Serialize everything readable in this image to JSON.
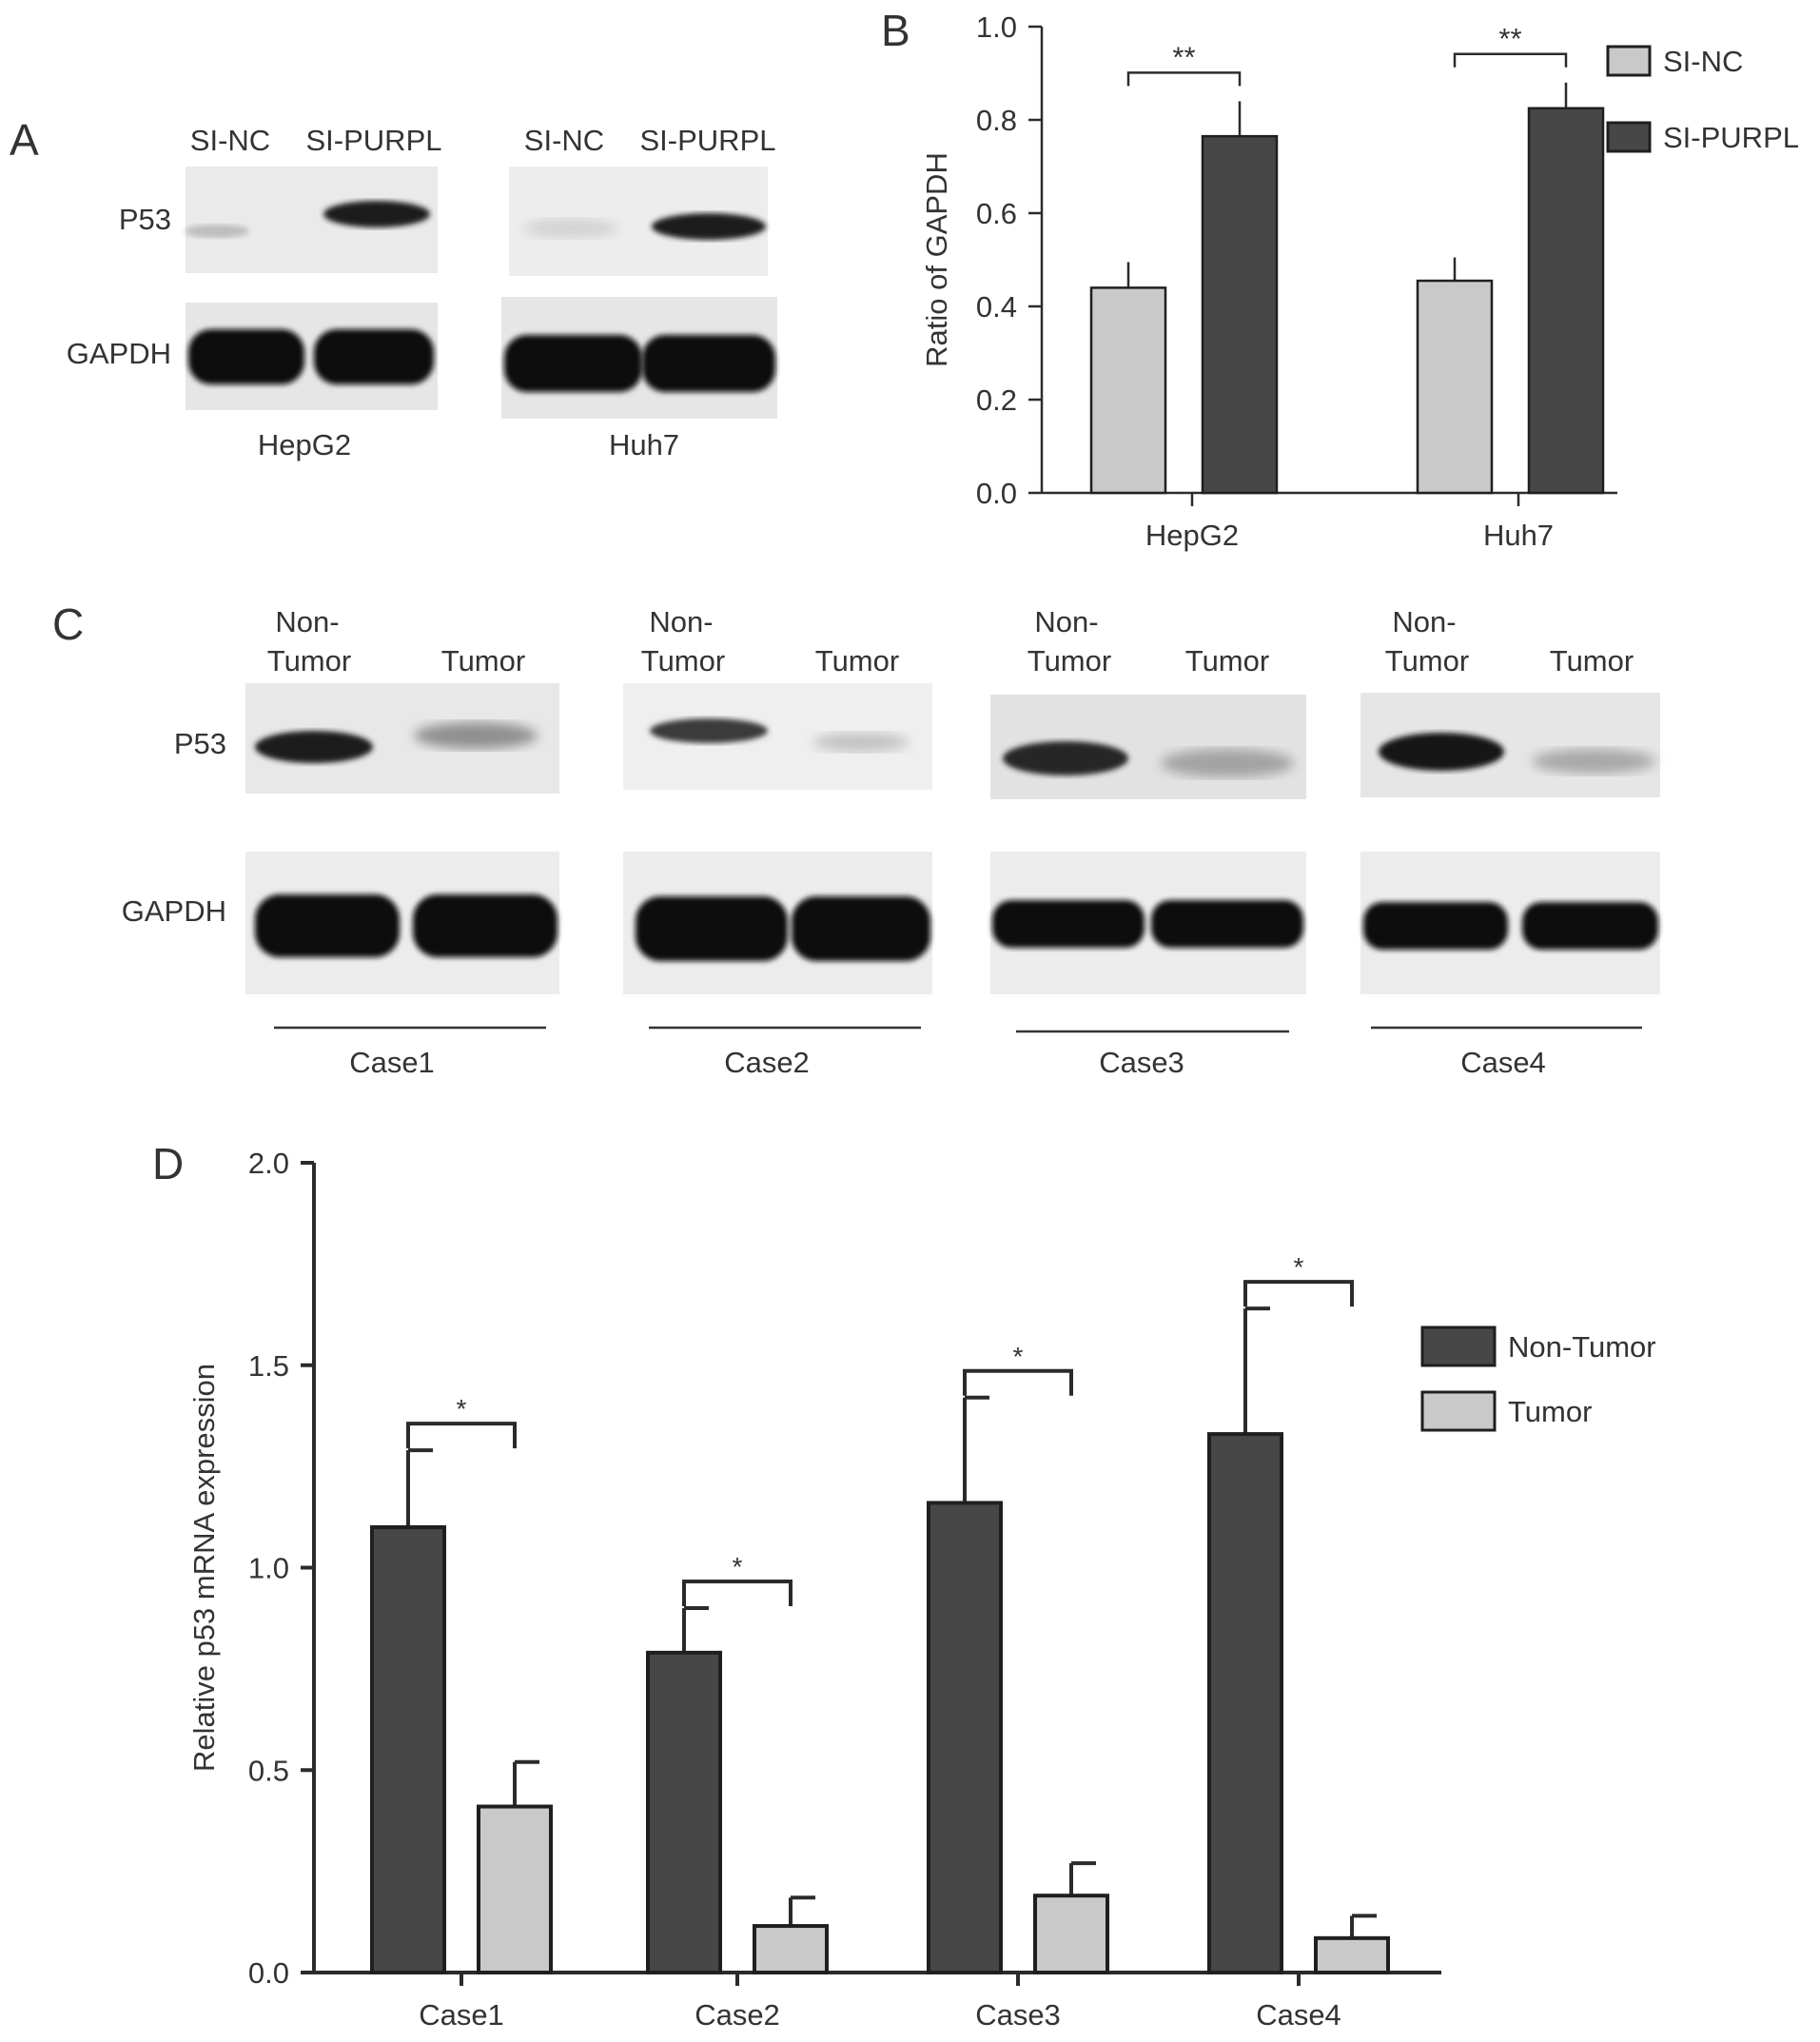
{
  "panels": {
    "A": {
      "letter": "A",
      "groups": [
        {
          "cell_line": "HepG2",
          "lanes": [
            "SI-NC",
            "SI-PURPL"
          ]
        },
        {
          "cell_line": "Huh7",
          "lanes": [
            "SI-NC",
            "SI-PURPL"
          ]
        }
      ],
      "rows": [
        "P53",
        "GAPDH"
      ]
    },
    "B": {
      "letter": "B"
    },
    "C": {
      "letter": "C",
      "lane_header": {
        "non_tumor_line1": "Non-",
        "non_tumor_line2": "Tumor",
        "tumor": "Tumor"
      },
      "cases": [
        "Case1",
        "Case2",
        "Case3",
        "Case4"
      ],
      "rows": [
        "P53",
        "GAPDH"
      ]
    },
    "D": {
      "letter": "D"
    }
  },
  "chart_data": [
    {
      "panel": "B",
      "type": "bar",
      "categories": [
        "HepG2",
        "Huh7"
      ],
      "series": [
        {
          "name": "SI-NC",
          "values": [
            0.44,
            0.455
          ],
          "errors": [
            0.055,
            0.05
          ],
          "color": "#c9c9c9"
        },
        {
          "name": "SI-PURPL",
          "values": [
            0.765,
            0.825
          ],
          "errors": [
            0.075,
            0.055
          ],
          "color": "#474747"
        }
      ],
      "significance": [
        "**",
        "**"
      ],
      "ylabel": "Ratio of GAPDH",
      "ylim": [
        0,
        1.0
      ],
      "yticks": [
        "0.0",
        "0.2",
        "0.4",
        "0.6",
        "0.8",
        "1.0"
      ],
      "legend": "top-right"
    },
    {
      "panel": "D",
      "type": "bar",
      "categories": [
        "Case1",
        "Case2",
        "Case3",
        "Case4"
      ],
      "series": [
        {
          "name": "Non-Tumor",
          "values": [
            1.1,
            0.79,
            1.16,
            1.33
          ],
          "errors": [
            0.19,
            0.11,
            0.26,
            0.31
          ],
          "color": "#474747"
        },
        {
          "name": "Tumor",
          "values": [
            0.41,
            0.115,
            0.19,
            0.085
          ],
          "errors": [
            0.11,
            0.07,
            0.08,
            0.055
          ],
          "color": "#c9c9c9"
        }
      ],
      "significance": [
        "*",
        "*",
        "*",
        "*"
      ],
      "ylabel": "Relative p53 mRNA expression",
      "ylim": [
        0,
        2.0
      ],
      "yticks": [
        "0.0",
        "0.5",
        "1.0",
        "1.5",
        "2.0"
      ],
      "legend": "top-right"
    }
  ]
}
